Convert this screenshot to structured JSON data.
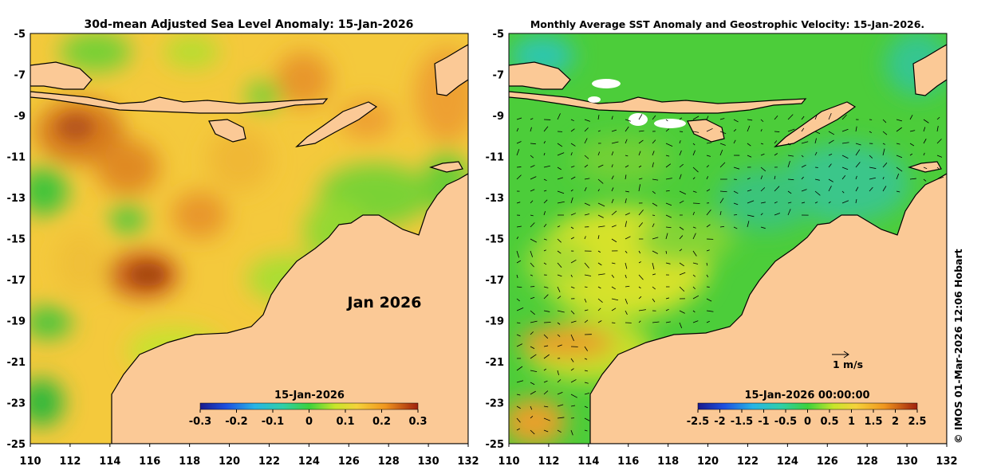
{
  "left_panel": {
    "title": "30d-mean Adjusted Sea Level Anomaly: 15-Jan-2026",
    "month_label": "Jan 2026",
    "colorbar": {
      "title": "15-Jan-2026",
      "ticks": [
        "-0.3",
        "-0.2",
        "-0.1",
        "0",
        "0.1",
        "0.2",
        "0.3"
      ],
      "range": [
        -0.3,
        0.3
      ]
    }
  },
  "right_panel": {
    "title": "Monthly Average SST Anomaly  and Geostrophic Velocity: 15-Jan-2026.",
    "velocity_scale_label": "1 m/s",
    "colorbar": {
      "title": "15-Jan-2026 00:00:00",
      "ticks": [
        "-2.5",
        "-2",
        "-1.5",
        "-1",
        "-0.5",
        "0",
        "0.5",
        "1",
        "1.5",
        "2",
        "2.5"
      ],
      "range": [
        -2.5,
        2.5
      ]
    }
  },
  "axes": {
    "lon_ticks": [
      "110",
      "112",
      "114",
      "116",
      "118",
      "120",
      "122",
      "124",
      "126",
      "128",
      "130",
      "132"
    ],
    "lat_ticks": [
      "-5",
      "-7",
      "-9",
      "-11",
      "-13",
      "-15",
      "-17",
      "-19",
      "-21",
      "-23",
      "-25"
    ],
    "lon_range": [
      110,
      132
    ],
    "lat_range": [
      -25,
      -5
    ]
  },
  "copyright": "© IMOS 01-Mar-2026 12:06 Hobart",
  "colors": {
    "land": "#fbc996",
    "coast": "#000000",
    "ocean_base_left": "#f5cc3a",
    "ocean_base_right": "#4ccd3a",
    "high_anomaly": "#c05a10",
    "low_anomaly": "#22b83a"
  }
}
